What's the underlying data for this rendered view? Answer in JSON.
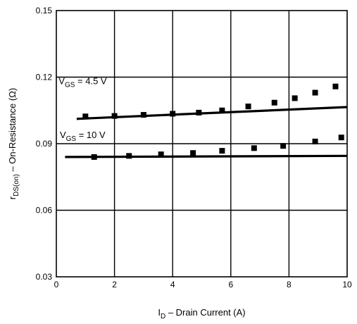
{
  "chart_data": {
    "type": "scatter",
    "title": "",
    "xlabel": "I_D – Drain Current (A)",
    "xlabel_parts": {
      "base": "I",
      "sub": "D",
      "rest": " – Drain Current (A)"
    },
    "ylabel": "r_DS(on) – On-Resistance (Ω)",
    "ylabel_parts": {
      "base": "r",
      "sub": "DS(on)",
      "rest": " – On-Resistance (Ω)"
    },
    "xlim": [
      0,
      10
    ],
    "ylim": [
      0.03,
      0.15
    ],
    "x_ticks": [
      0,
      2,
      4,
      6,
      8,
      10
    ],
    "x_tick_labels": [
      "0",
      "2",
      "4",
      "6",
      "8",
      "10"
    ],
    "y_ticks": [
      0.03,
      0.06,
      0.09,
      0.12,
      0.15
    ],
    "y_tick_labels": [
      "0.03",
      "0.06",
      "0.09",
      "0.12",
      "0.15"
    ],
    "grid": true,
    "colors": {
      "line": "#000000",
      "marker": "#000000",
      "grid": "#000000"
    },
    "annotations": [
      {
        "id": "vgs45",
        "base": "V",
        "sub": "GS",
        "rest": " = 4.5 V",
        "x": 0.08,
        "y": 0.1168
      },
      {
        "id": "vgs10",
        "base": "V",
        "sub": "GS",
        "rest": " = 10 V",
        "x": 0.12,
        "y": 0.0925
      }
    ],
    "series": [
      {
        "label": "V_GS = 4.5 V",
        "line": {
          "x": [
            0.7,
            10
          ],
          "y": [
            0.1012,
            0.1065
          ]
        },
        "points": {
          "x": [
            1.0,
            2.0,
            3.0,
            4.0,
            4.9,
            5.7,
            6.6,
            7.5,
            8.2,
            8.9,
            9.6
          ],
          "y": [
            0.1023,
            0.1025,
            0.103,
            0.1035,
            0.104,
            0.105,
            0.1068,
            0.1085,
            0.1105,
            0.113,
            0.1158
          ]
        }
      },
      {
        "label": "V_GS = 10 V",
        "line": {
          "x": [
            0.3,
            10
          ],
          "y": [
            0.084,
            0.0845
          ]
        },
        "points": {
          "x": [
            1.3,
            2.5,
            3.6,
            4.7,
            5.7,
            6.8,
            7.8,
            8.9,
            9.8
          ],
          "y": [
            0.084,
            0.0845,
            0.0852,
            0.0858,
            0.0868,
            0.088,
            0.089,
            0.091,
            0.0928
          ]
        }
      }
    ]
  }
}
